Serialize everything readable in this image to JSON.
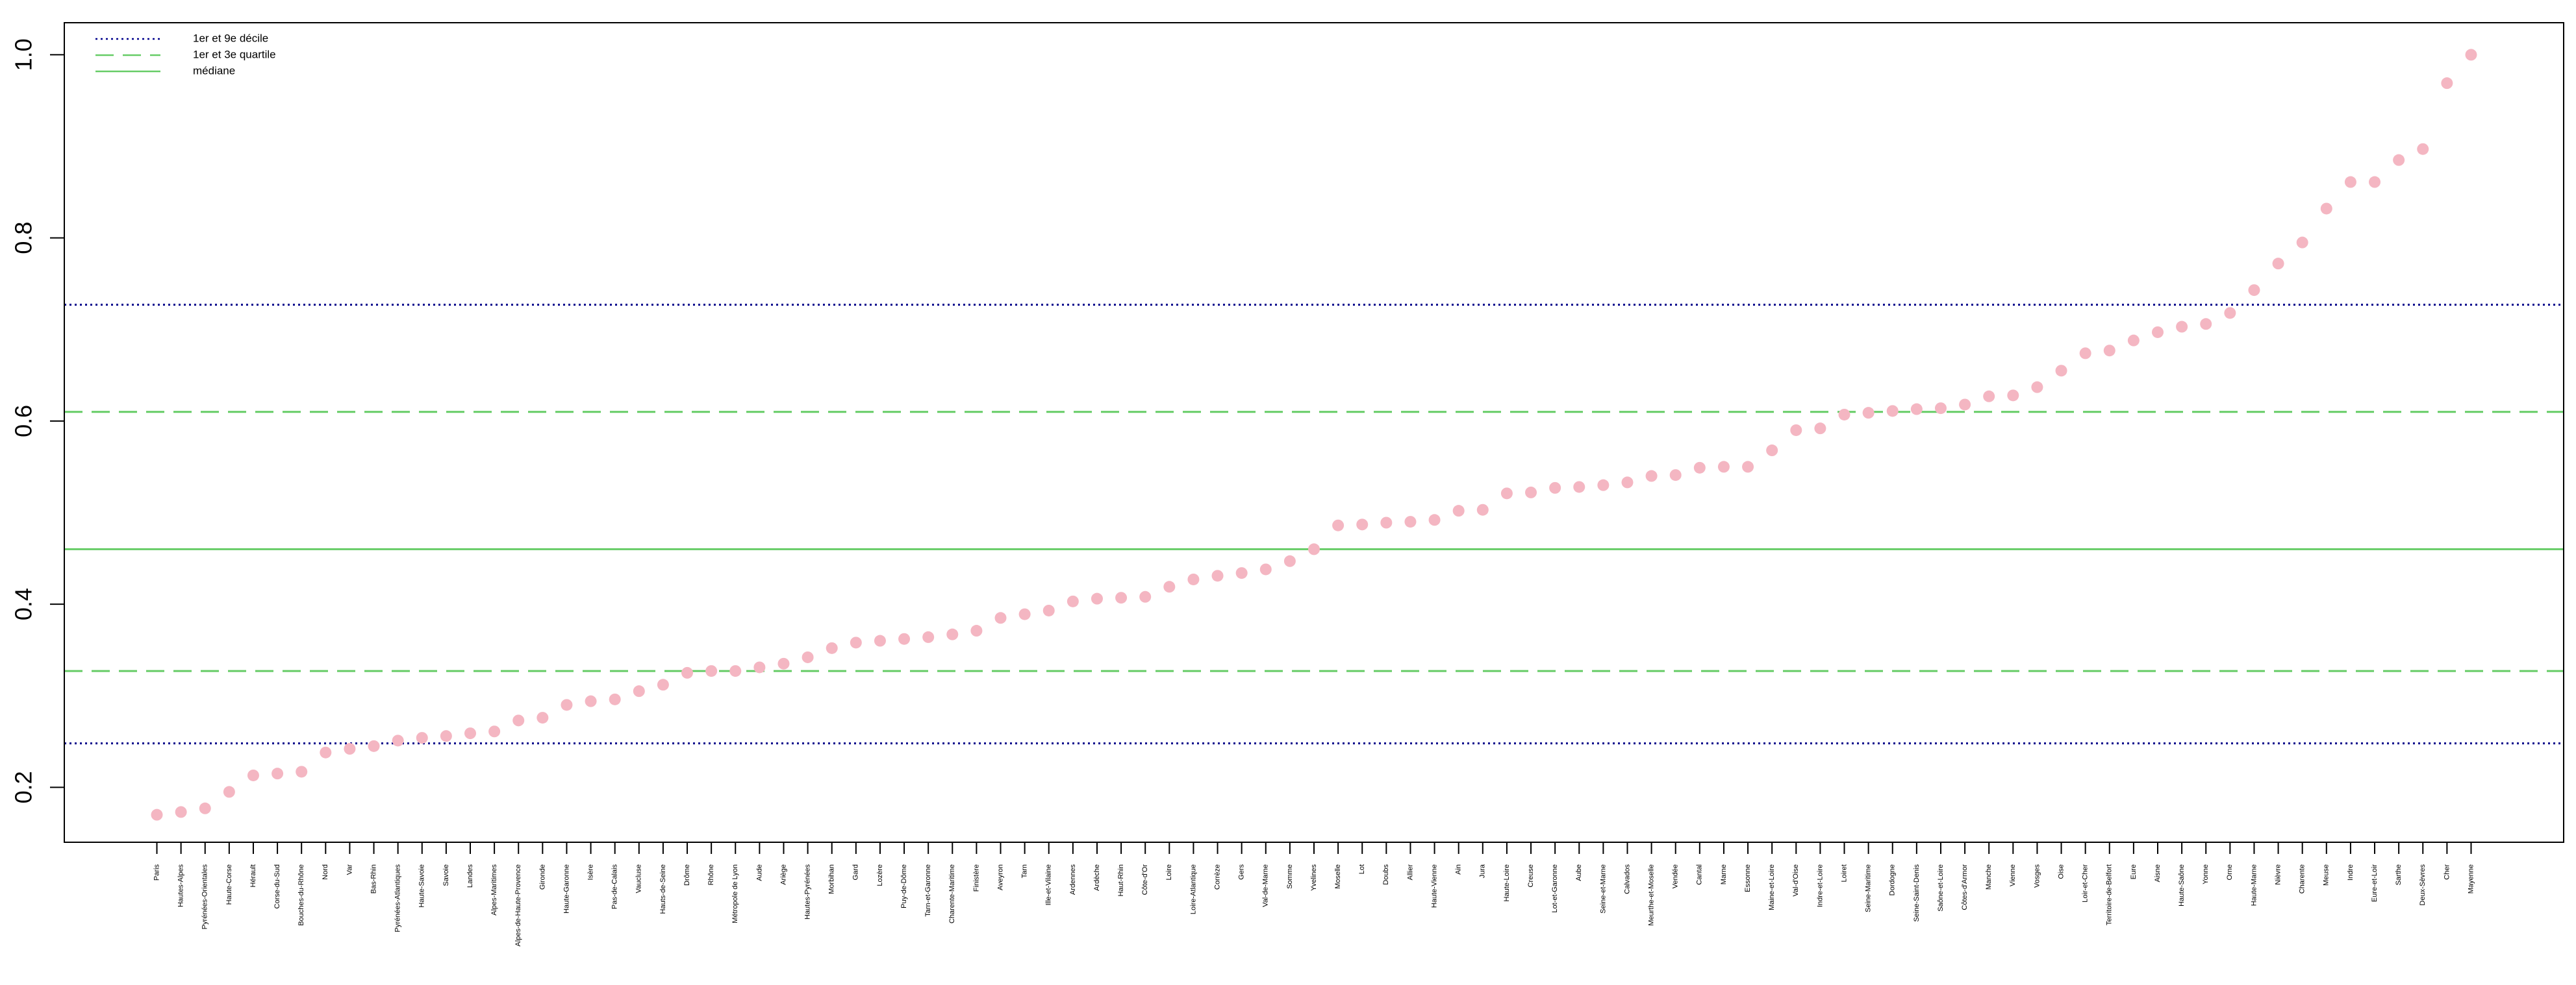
{
  "chart_data": {
    "type": "scatter",
    "categories": [
      "Paris",
      "Hautes-Alpes",
      "Pyrénées-Orientales",
      "Haute-Corse",
      "Hérault",
      "Corse-du-Sud",
      "Bouches-du-Rhône",
      "Nord",
      "Var",
      "Bas-Rhin",
      "Pyrénées-Atlantiques",
      "Haute-Savoie",
      "Savoie",
      "Landes",
      "Alpes-Maritimes",
      "Alpes-de-Haute-Provence",
      "Gironde",
      "Haute-Garonne",
      "Isère",
      "Pas-de-Calais",
      "Vaucluse",
      "Hauts-de-Seine",
      "Drôme",
      "Rhône",
      "Métropole de Lyon",
      "Aude",
      "Ariège",
      "Hautes-Pyrénées",
      "Morbihan",
      "Gard",
      "Lozère",
      "Puy-de-Dôme",
      "Tarn-et-Garonne",
      "Charente-Maritime",
      "Finistère",
      "Aveyron",
      "Tarn",
      "Ille-et-Vilaine",
      "Ardennes",
      "Ardèche",
      "Haut-Rhin",
      "Côte-d'Or",
      "Loire",
      "Loire-Atlantique",
      "Corrèze",
      "Gers",
      "Val-de-Marne",
      "Somme",
      "Yvelines",
      "Moselle",
      "Lot",
      "Doubs",
      "Allier",
      "Haute-Vienne",
      "Ain",
      "Jura",
      "Haute-Loire",
      "Creuse",
      "Lot-et-Garonne",
      "Aube",
      "Seine-et-Marne",
      "Calvados",
      "Meurthe-et-Moselle",
      "Vendée",
      "Cantal",
      "Marne",
      "Essonne",
      "Maine-et-Loire",
      "Val-d'Oise",
      "Indre-et-Loire",
      "Loiret",
      "Seine-Maritime",
      "Dordogne",
      "Seine-Saint-Denis",
      "Saône-et-Loire",
      "Côtes-d'Armor",
      "Manche",
      "Vienne",
      "Vosges",
      "Oise",
      "Loir-et-Cher",
      "Territoire-de-Belfort",
      "Eure",
      "Aisne",
      "Haute-Saône",
      "Yonne",
      "Orne",
      "Haute-Marne",
      "Nièvre",
      "Charente",
      "Meuse",
      "Indre",
      "Eure-et-Loir",
      "Sarthe",
      "Deux-Sèvres",
      "Cher",
      "Mayenne"
    ],
    "values": [
      0.17,
      0.173,
      0.177,
      0.195,
      0.213,
      0.215,
      0.217,
      0.238,
      0.242,
      0.245,
      0.251,
      0.254,
      0.256,
      0.259,
      0.261,
      0.273,
      0.276,
      0.29,
      0.294,
      0.296,
      0.305,
      0.312,
      0.325,
      0.327,
      0.327,
      0.331,
      0.335,
      0.342,
      0.352,
      0.358,
      0.36,
      0.362,
      0.364,
      0.367,
      0.371,
      0.385,
      0.389,
      0.393,
      0.403,
      0.406,
      0.407,
      0.408,
      0.419,
      0.427,
      0.431,
      0.434,
      0.438,
      0.447,
      0.46,
      0.486,
      0.487,
      0.489,
      0.49,
      0.492,
      0.502,
      0.503,
      0.521,
      0.522,
      0.527,
      0.528,
      0.53,
      0.533,
      0.54,
      0.541,
      0.549,
      0.55,
      0.55,
      0.568,
      0.59,
      0.592,
      0.607,
      0.609,
      0.611,
      0.613,
      0.614,
      0.618,
      0.627,
      0.628,
      0.637,
      0.655,
      0.674,
      0.677,
      0.688,
      0.697,
      0.703,
      0.706,
      0.718,
      0.743,
      0.772,
      0.795,
      0.832,
      0.861,
      0.861,
      0.885,
      0.897,
      0.969,
      1.0
    ],
    "color": "#f4b6c2",
    "ylim": [
      0.14,
      1.035
    ],
    "yticks": [
      0.2,
      0.4,
      0.6,
      0.8,
      {
        "value": 1,
        "label": "1.0"
      }
    ],
    "reference_lines": [
      {
        "name": "1er et 9e décile",
        "color": "#00008b",
        "style": "dotted",
        "values": [
          0.248,
          0.727
        ]
      },
      {
        "name": "1er et 3e quartile",
        "color": "#66cc66",
        "style": "dashed",
        "values": [
          0.327,
          0.61
        ]
      },
      {
        "name": "médiane",
        "color": "#66cc66",
        "style": "solid",
        "values": [
          0.46
        ]
      }
    ],
    "legend": "top-left"
  }
}
